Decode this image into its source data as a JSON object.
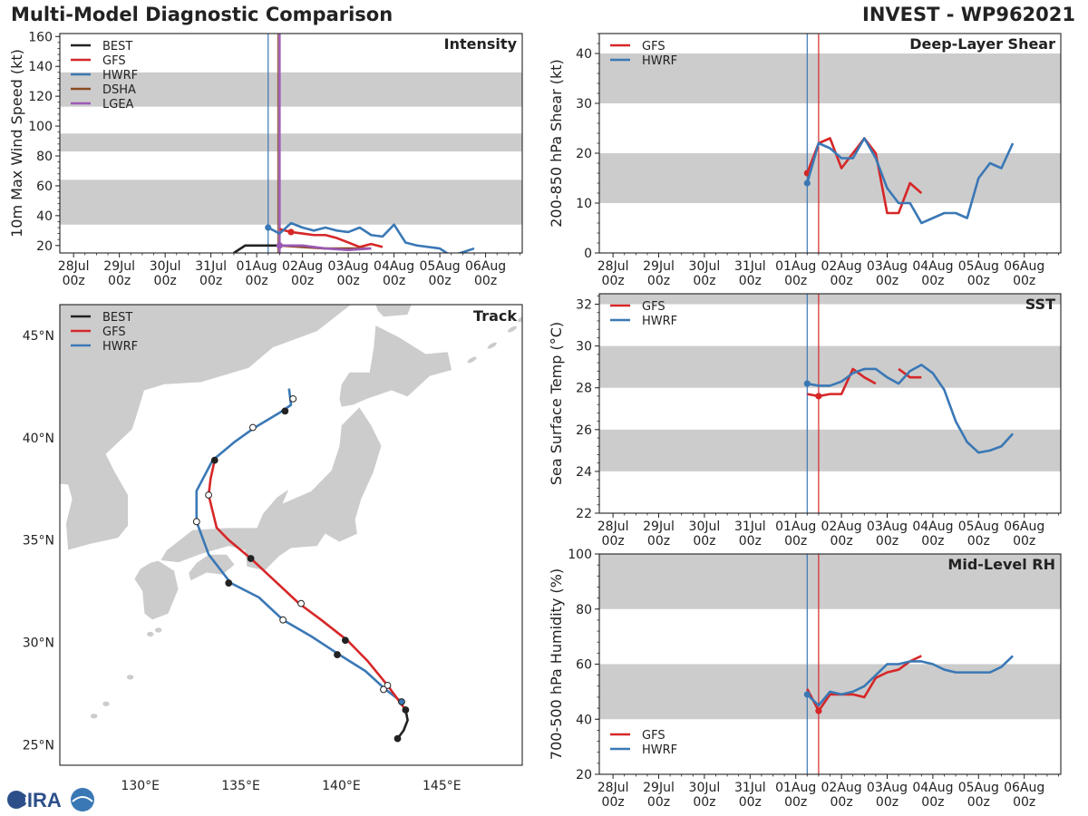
{
  "page": {
    "title_left": "Multi-Model Diagnostic Comparison",
    "title_right": "INVEST - WP962021",
    "logo_text": "CIRA"
  },
  "colors": {
    "BEST": "#222222",
    "GFS": "#d62728",
    "HWRF": "#3a78b5",
    "DSHA": "#8c4a21",
    "LGEA": "#9b59b6",
    "band": "#cccccc",
    "ocean": "#ffffff",
    "land": "#cccccc"
  },
  "time_axis": {
    "ticks": [
      {
        "day": "28Jul",
        "hour": "00z"
      },
      {
        "day": "29Jul",
        "hour": "00z"
      },
      {
        "day": "30Jul",
        "hour": "00z"
      },
      {
        "day": "31Jul",
        "hour": "00z"
      },
      {
        "day": "01Aug",
        "hour": "00z"
      },
      {
        "day": "02Aug",
        "hour": "00z"
      },
      {
        "day": "03Aug",
        "hour": "00z"
      },
      {
        "day": "04Aug",
        "hour": "00z"
      },
      {
        "day": "05Aug",
        "hour": "00z"
      },
      {
        "day": "06Aug",
        "hour": "00z"
      }
    ],
    "range_days": [
      -0.3,
      9.8
    ],
    "hwrf_init_day": 4.25,
    "gfs_init_day": 4.5
  },
  "chart_data": [
    {
      "id": "intensity",
      "type": "line",
      "title": "Intensity",
      "ylabel": "10m Max Wind Speed (kt)",
      "ylim": [
        15,
        162
      ],
      "yticks": [
        20,
        40,
        60,
        80,
        100,
        120,
        140,
        160
      ],
      "bands": [
        [
          34,
          64
        ],
        [
          83,
          95
        ],
        [
          113,
          136
        ]
      ],
      "legend": [
        "BEST",
        "GFS",
        "HWRF",
        "DSHA",
        "LGEA"
      ],
      "series": [
        {
          "name": "BEST",
          "x": [
            3.5,
            3.75,
            4.0,
            4.25,
            4.5
          ],
          "y": [
            15,
            20,
            20,
            20,
            20
          ]
        },
        {
          "name": "GFS",
          "x": [
            4.5,
            4.75,
            5.0,
            5.25,
            5.5,
            5.75,
            6.0,
            6.25,
            6.5,
            6.75
          ],
          "y": [
            31,
            29,
            28,
            27,
            27,
            25,
            22,
            19,
            21,
            19
          ]
        },
        {
          "name": "HWRF",
          "x": [
            4.25,
            4.5,
            4.75,
            5.0,
            5.25,
            5.5,
            5.75,
            6.0,
            6.25,
            6.5,
            6.75,
            7.0,
            7.25,
            7.5,
            8.0,
            8.25,
            8.75
          ],
          "y": [
            32,
            28,
            35,
            32,
            30,
            32,
            30,
            29,
            32,
            27,
            26,
            34,
            22,
            20,
            18,
            13,
            18
          ]
        },
        {
          "name": "DSHA",
          "x": [
            4.5,
            5.0,
            5.5,
            6.0,
            6.5
          ],
          "y": [
            20,
            19,
            18,
            18,
            18
          ]
        },
        {
          "name": "LGEA",
          "x": [
            4.5,
            5.0,
            5.5,
            6.0,
            6.5
          ],
          "y": [
            20,
            20,
            18,
            17,
            18
          ]
        }
      ]
    },
    {
      "id": "shear",
      "type": "line",
      "title": "Deep-Layer Shear",
      "ylabel": "200-850 hPa Shear (kt)",
      "ylim": [
        0,
        44
      ],
      "yticks": [
        0,
        10,
        20,
        30,
        40
      ],
      "bands": [
        [
          10,
          20
        ],
        [
          30,
          40
        ]
      ],
      "legend": [
        "GFS",
        "HWRF"
      ],
      "series": [
        {
          "name": "GFS",
          "x": [
            4.25,
            4.5,
            4.75,
            5.0,
            5.25,
            5.5,
            5.75,
            6.0,
            6.25,
            6.5,
            6.75
          ],
          "y": [
            16,
            22,
            23,
            17,
            20,
            23,
            20,
            8,
            8,
            14,
            12
          ]
        },
        {
          "name": "HWRF",
          "x": [
            4.25,
            4.5,
            4.75,
            5.0,
            5.25,
            5.5,
            5.75,
            6.0,
            6.25,
            6.5,
            6.75,
            7.0,
            7.25,
            7.5,
            7.75,
            8.0,
            8.25,
            8.5,
            8.75
          ],
          "y": [
            14,
            22,
            21,
            19,
            19,
            23,
            19,
            13,
            10,
            10,
            6,
            7,
            8,
            8,
            7,
            15,
            18,
            17,
            22
          ]
        }
      ]
    },
    {
      "id": "sst",
      "type": "line",
      "title": "SST",
      "ylabel": "Sea Surface Temp (°C)",
      "ylim": [
        22,
        32.5
      ],
      "yticks": [
        22,
        24,
        26,
        28,
        30,
        32
      ],
      "bands": [
        [
          24,
          26
        ],
        [
          28,
          30
        ],
        [
          32,
          33
        ]
      ],
      "legend": [
        "GFS",
        "HWRF"
      ],
      "series": [
        {
          "name": "GFS",
          "x": [
            4.25,
            4.5,
            4.75,
            5.0,
            5.25,
            5.5,
            5.75
          ],
          "y": [
            27.7,
            27.6,
            27.7,
            27.7,
            28.9,
            28.5,
            28.2
          ]
        },
        {
          "name": "GFS_b",
          "x": [
            6.25,
            6.5,
            6.75
          ],
          "y": [
            28.9,
            28.5,
            28.5
          ]
        },
        {
          "name": "HWRF",
          "x": [
            4.25,
            4.5,
            4.75,
            5.0,
            5.25,
            5.5,
            5.75,
            6.0,
            6.25,
            6.5,
            6.75,
            7.0,
            7.25,
            7.5,
            7.75,
            8.0,
            8.25,
            8.5,
            8.75
          ],
          "y": [
            28.2,
            28.1,
            28.1,
            28.3,
            28.7,
            28.9,
            28.9,
            28.5,
            28.2,
            28.8,
            29.1,
            28.7,
            27.9,
            26.4,
            25.4,
            24.9,
            25.0,
            25.2,
            25.8
          ]
        }
      ]
    },
    {
      "id": "rh",
      "type": "line",
      "title": "Mid-Level RH",
      "ylabel": "700-500 hPa Humidity (%)",
      "ylim": [
        20,
        100
      ],
      "yticks": [
        20,
        40,
        60,
        80,
        100
      ],
      "bands": [
        [
          40,
          60
        ],
        [
          80,
          100
        ]
      ],
      "legend": [
        "GFS",
        "HWRF"
      ],
      "series": [
        {
          "name": "GFS",
          "x": [
            4.25,
            4.5,
            4.75,
            5.0,
            5.25,
            5.5,
            5.75,
            6.0,
            6.25,
            6.5,
            6.75
          ],
          "y": [
            51,
            43,
            49,
            49,
            49,
            48,
            55,
            57,
            58,
            61,
            63
          ]
        },
        {
          "name": "HWRF",
          "x": [
            4.25,
            4.5,
            4.75,
            5.0,
            5.25,
            5.5,
            5.75,
            6.0,
            6.25,
            6.5,
            6.75,
            7.0,
            7.25,
            7.5,
            7.75,
            8.0,
            8.25,
            8.5,
            8.75
          ],
          "y": [
            49,
            45,
            50,
            49,
            50,
            52,
            56,
            60,
            60,
            61,
            61,
            60,
            58,
            57,
            57,
            57,
            57,
            59,
            63
          ]
        }
      ]
    },
    {
      "id": "track",
      "type": "scatter",
      "title": "Track",
      "lon_range": [
        126,
        149
      ],
      "lat_range": [
        24,
        46.5
      ],
      "xticks": [
        130,
        135,
        140,
        145
      ],
      "xtick_labels": [
        "130°E",
        "135°E",
        "140°E",
        "145°E"
      ],
      "yticks": [
        25,
        30,
        35,
        40,
        45
      ],
      "ytick_labels": [
        "25°N",
        "30°N",
        "35°N",
        "40°N",
        "45°N"
      ],
      "legend": [
        "BEST",
        "GFS",
        "HWRF"
      ],
      "tracks": [
        {
          "name": "BEST",
          "lon": [
            142.8,
            143.1,
            143.3,
            143.2
          ],
          "lat": [
            25.3,
            25.7,
            26.2,
            26.7
          ],
          "markers": [
            {
              "lon": 142.8,
              "lat": 25.3,
              "filled": true
            },
            {
              "lon": 143.2,
              "lat": 26.7,
              "filled": true
            }
          ]
        },
        {
          "name": "GFS",
          "lon": [
            143.2,
            142.3,
            141.3,
            140.3,
            139.0,
            137.9,
            136.7,
            135.5,
            134.4,
            133.8,
            133.4,
            133.5,
            133.7
          ],
          "lat": [
            26.7,
            27.9,
            29.1,
            30.1,
            31.1,
            31.9,
            33.0,
            34.1,
            35.0,
            35.6,
            37.2,
            38.0,
            38.9
          ],
          "markers": [
            {
              "lon": 142.3,
              "lat": 27.9,
              "filled": false
            },
            {
              "lon": 140.2,
              "lat": 30.1,
              "filled": true
            },
            {
              "lon": 138.0,
              "lat": 31.9,
              "filled": false
            },
            {
              "lon": 135.5,
              "lat": 34.1,
              "filled": true
            },
            {
              "lon": 133.4,
              "lat": 37.2,
              "filled": false
            },
            {
              "lon": 133.7,
              "lat": 38.9,
              "filled": true
            }
          ]
        },
        {
          "name": "HWRF",
          "lon": [
            143.0,
            142.2,
            141.2,
            139.9,
            138.5,
            137.1,
            135.9,
            134.5,
            133.4,
            132.8,
            132.8,
            133.6,
            134.7,
            135.7,
            136.9,
            137.5,
            137.4
          ],
          "lat": [
            27.1,
            27.7,
            28.6,
            29.4,
            30.3,
            31.1,
            32.2,
            32.9,
            34.3,
            35.9,
            37.4,
            38.9,
            39.8,
            40.5,
            41.2,
            41.6,
            42.4
          ],
          "markers": [
            {
              "lon": 143.0,
              "lat": 27.1,
              "filled": true,
              "color": "#3a78b5"
            },
            {
              "lon": 142.1,
              "lat": 27.7,
              "filled": false
            },
            {
              "lon": 139.8,
              "lat": 29.4,
              "filled": true
            },
            {
              "lon": 137.1,
              "lat": 31.1,
              "filled": false
            },
            {
              "lon": 134.4,
              "lat": 32.9,
              "filled": true
            },
            {
              "lon": 132.8,
              "lat": 35.9,
              "filled": false
            },
            {
              "lon": 135.6,
              "lat": 40.5,
              "filled": false
            },
            {
              "lon": 137.2,
              "lat": 41.3,
              "filled": true
            },
            {
              "lon": 137.6,
              "lat": 41.9,
              "filled": false
            }
          ]
        }
      ]
    }
  ]
}
